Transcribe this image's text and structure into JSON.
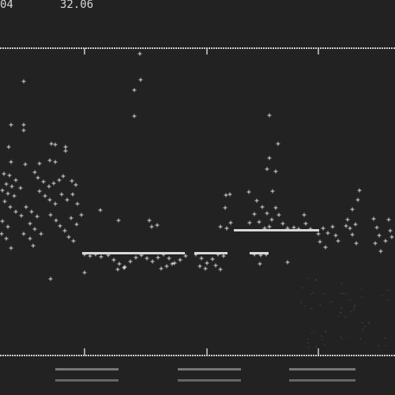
{
  "header": {
    "left_value": "04",
    "right_value": "32.06"
  },
  "chart_data": {
    "type": "scatter",
    "title": "",
    "xlabel": "",
    "ylabel": "",
    "grid": false,
    "legend": "none",
    "xlim": [
      0,
      500
    ],
    "ylim": [
      500,
      0
    ],
    "x_ticks": [
      107,
      262,
      403
    ],
    "tick_labels_legible": false,
    "colors": {
      "background": "#222222",
      "foreground": "#d8d8d8"
    },
    "series": [
      {
        "points": [
          [
            30,
            103
          ],
          [
            177,
            68
          ],
          [
            178,
            101
          ],
          [
            170,
            114
          ],
          [
            170,
            147
          ],
          [
            341,
            146
          ],
          [
            14,
            158
          ],
          [
            30,
            158
          ],
          [
            30,
            165
          ],
          [
            352,
            182
          ],
          [
            11,
            186
          ],
          [
            65,
            182
          ],
          [
            70,
            183
          ],
          [
            83,
            186
          ],
          [
            83,
            191
          ],
          [
            14,
            205
          ],
          [
            32,
            208
          ],
          [
            50,
            207
          ],
          [
            63,
            203
          ],
          [
            70,
            205
          ],
          [
            341,
            200
          ],
          [
            338,
            214
          ],
          [
            349,
            217
          ],
          [
            5,
            220
          ],
          [
            12,
            222
          ],
          [
            20,
            228
          ],
          [
            8,
            233
          ],
          [
            15,
            236
          ],
          [
            3,
            241
          ],
          [
            10,
            245
          ],
          [
            18,
            248
          ],
          [
            26,
            238
          ],
          [
            44,
            218
          ],
          [
            48,
            225
          ],
          [
            55,
            230
          ],
          [
            62,
            236
          ],
          [
            68,
            232
          ],
          [
            75,
            228
          ],
          [
            80,
            223
          ],
          [
            91,
            229
          ],
          [
            96,
            234
          ],
          [
            50,
            242
          ],
          [
            57,
            248
          ],
          [
            63,
            253
          ],
          [
            70,
            258
          ],
          [
            78,
            246
          ],
          [
            85,
            253
          ],
          [
            92,
            246
          ],
          [
            98,
            258
          ],
          [
            6,
            255
          ],
          [
            13,
            262
          ],
          [
            20,
            268
          ],
          [
            27,
            273
          ],
          [
            3,
            280
          ],
          [
            10,
            287
          ],
          [
            33,
            262
          ],
          [
            40,
            268
          ],
          [
            47,
            274
          ],
          [
            38,
            283
          ],
          [
            44,
            290
          ],
          [
            52,
            296
          ],
          [
            30,
            296
          ],
          [
            38,
            302
          ],
          [
            42,
            311
          ],
          [
            14,
            314
          ],
          [
            64,
            272
          ],
          [
            71,
            279
          ],
          [
            76,
            286
          ],
          [
            82,
            292
          ],
          [
            90,
            276
          ],
          [
            97,
            284
          ],
          [
            103,
            272
          ],
          [
            87,
            300
          ],
          [
            93,
            305
          ],
          [
            2,
            296
          ],
          [
            8,
            302
          ],
          [
            127,
            266
          ],
          [
            150,
            279
          ],
          [
            189,
            279
          ],
          [
            192,
            287
          ],
          [
            199,
            285
          ],
          [
            286,
            247
          ],
          [
            291,
            246
          ],
          [
            285,
            263
          ],
          [
            292,
            282
          ],
          [
            287,
            289
          ],
          [
            279,
            287
          ],
          [
            315,
            243
          ],
          [
            325,
            254
          ],
          [
            332,
            262
          ],
          [
            338,
            270
          ],
          [
            344,
            278
          ],
          [
            341,
            287
          ],
          [
            349,
            263
          ],
          [
            353,
            272
          ],
          [
            345,
            242
          ],
          [
            322,
            271
          ],
          [
            316,
            282
          ],
          [
            328,
            281
          ],
          [
            335,
            289
          ],
          [
            358,
            283
          ],
          [
            364,
            289
          ],
          [
            372,
            288
          ],
          [
            378,
            290
          ],
          [
            385,
            272
          ],
          [
            387,
            283
          ],
          [
            393,
            290
          ],
          [
            403,
            296
          ],
          [
            409,
            289
          ],
          [
            415,
            295
          ],
          [
            421,
            287
          ],
          [
            405,
            306
          ],
          [
            412,
            313
          ],
          [
            425,
            298
          ],
          [
            428,
            305
          ],
          [
            440,
            278
          ],
          [
            443,
            289
          ],
          [
            446,
            297
          ],
          [
            450,
            284
          ],
          [
            455,
            241
          ],
          [
            453,
            253
          ],
          [
            446,
            265
          ],
          [
            438,
            286
          ],
          [
            451,
            308
          ],
          [
            473,
            277
          ],
          [
            477,
            288
          ],
          [
            480,
            298
          ],
          [
            475,
            308
          ],
          [
            482,
            318
          ],
          [
            492,
            278
          ],
          [
            494,
            292
          ],
          [
            496,
            300
          ],
          [
            488,
            305
          ],
          [
            107,
            322
          ],
          [
            114,
            324
          ],
          [
            121,
            322
          ],
          [
            128,
            325
          ],
          [
            137,
            323
          ],
          [
            144,
            329
          ],
          [
            151,
            334
          ],
          [
            158,
            338
          ],
          [
            165,
            331
          ],
          [
            172,
            326
          ],
          [
            179,
            323
          ],
          [
            186,
            327
          ],
          [
            193,
            331
          ],
          [
            200,
            326
          ],
          [
            207,
            322
          ],
          [
            214,
            327
          ],
          [
            221,
            333
          ],
          [
            228,
            329
          ],
          [
            235,
            324
          ],
          [
            149,
            341
          ],
          [
            157,
            339
          ],
          [
            204,
            340
          ],
          [
            211,
            337
          ],
          [
            218,
            334
          ],
          [
            248,
            322
          ],
          [
            255,
            327
          ],
          [
            262,
            333
          ],
          [
            269,
            328
          ],
          [
            276,
            322
          ],
          [
            283,
            324
          ],
          [
            273,
            336
          ],
          [
            279,
            341
          ],
          [
            253,
            337
          ],
          [
            260,
            340
          ],
          [
            322,
            322
          ],
          [
            330,
            323
          ],
          [
            337,
            322
          ],
          [
            329,
            334
          ],
          [
            364,
            332
          ],
          [
            107,
            345
          ],
          [
            64,
            353
          ]
        ]
      }
    ]
  }
}
